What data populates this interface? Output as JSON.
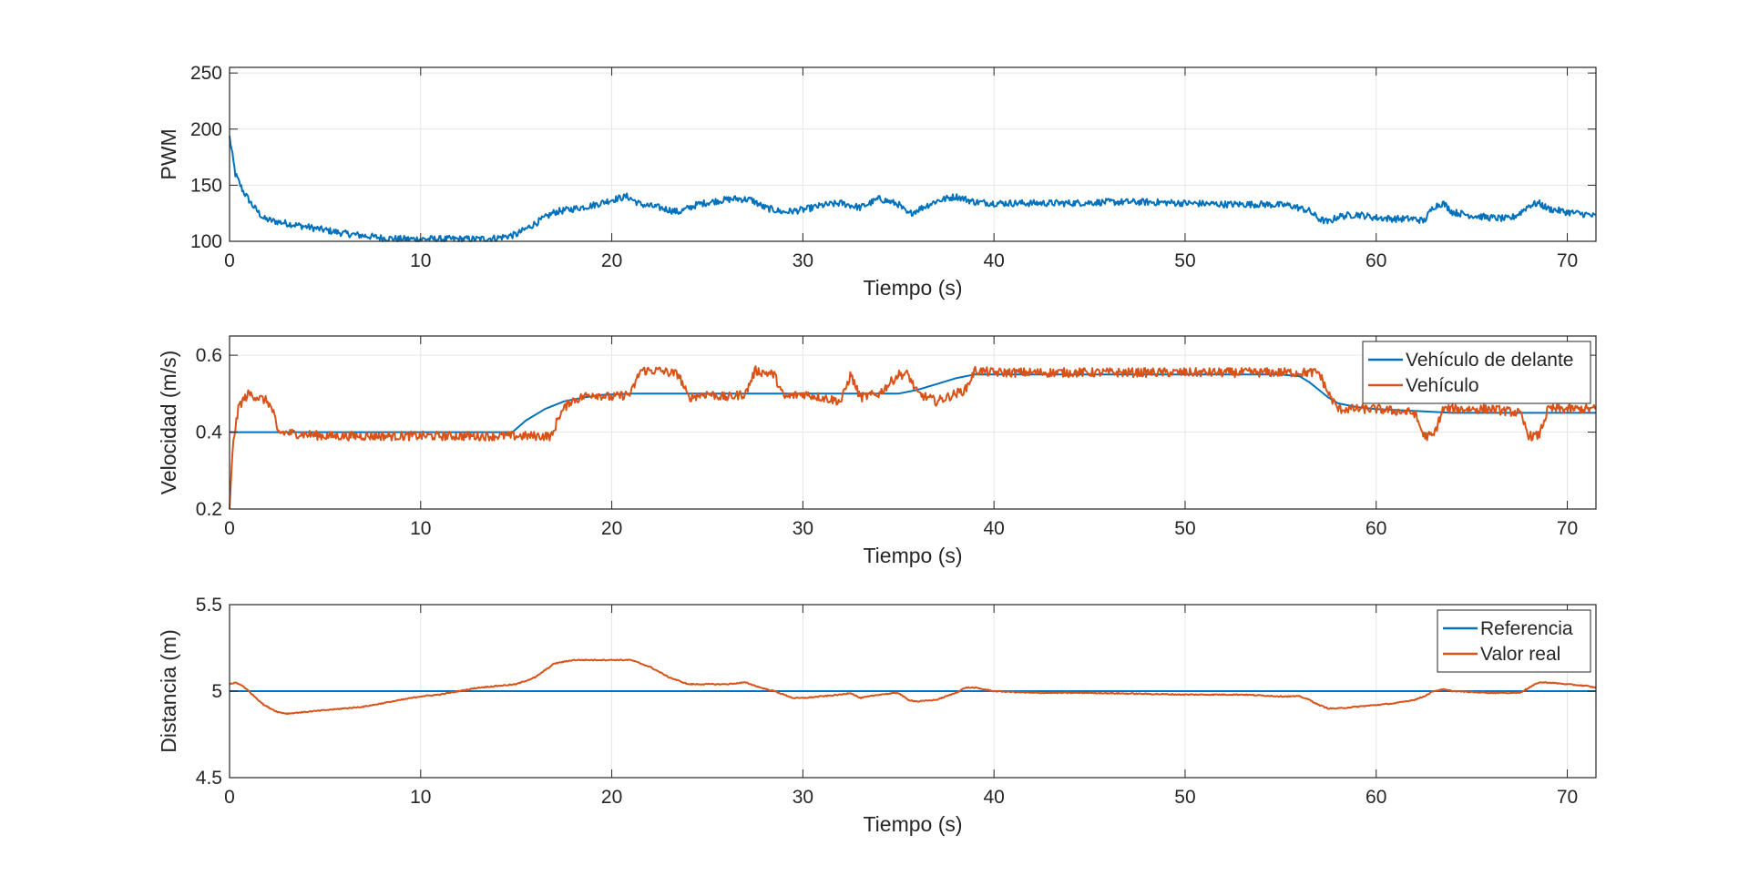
{
  "chart_data": [
    {
      "type": "line",
      "ylabel": "PWM",
      "xlabel": "Tiempo (s)",
      "xlim": [
        0,
        71.5
      ],
      "ylim": [
        100,
        255
      ],
      "xticks": [
        0,
        10,
        20,
        30,
        40,
        50,
        60,
        70
      ],
      "yticks": [
        100,
        150,
        200,
        250
      ],
      "grid": true,
      "legend": null,
      "series": [
        {
          "color": "#0072BD",
          "noise": 3,
          "x": [
            0,
            0.3,
            0.7,
            1.2,
            1.8,
            2.3,
            3,
            4,
            5,
            6,
            7,
            8,
            9,
            10,
            11,
            12,
            13,
            14,
            15,
            16,
            17,
            18,
            19,
            20,
            20.8,
            21.5,
            22.5,
            23.5,
            24.5,
            25.5,
            26.5,
            27.3,
            28,
            29,
            30,
            31,
            32,
            33,
            34,
            35,
            35.5,
            36,
            37,
            38,
            39,
            40,
            42,
            44,
            46,
            48,
            50,
            52,
            54,
            55.5,
            56.5,
            57,
            57.5,
            58,
            59,
            60,
            61,
            62,
            62.5,
            63,
            63.5,
            64,
            65,
            66,
            67,
            67.5,
            68,
            68.5,
            69,
            70,
            71,
            71.5
          ],
          "y": [
            193,
            160,
            145,
            132,
            120,
            118,
            116,
            113,
            110,
            107,
            105,
            103,
            102,
            102,
            102,
            102,
            102,
            103,
            106,
            116,
            126,
            129,
            132,
            137,
            140,
            133,
            130,
            126,
            133,
            136,
            138,
            137,
            130,
            126,
            128,
            132,
            134,
            130,
            138,
            133,
            124,
            128,
            136,
            140,
            135,
            134,
            134,
            134,
            135,
            135,
            134,
            133,
            133,
            132,
            127,
            120,
            117,
            122,
            124,
            121,
            120,
            120,
            118,
            131,
            134,
            126,
            123,
            121,
            120,
            125,
            132,
            134,
            129,
            126,
            124,
            122
          ]
        }
      ]
    },
    {
      "type": "line",
      "ylabel": "Velocidad (m/s)",
      "xlabel": "Tiempo (s)",
      "xlim": [
        0,
        71.5
      ],
      "ylim": [
        0.2,
        0.65
      ],
      "xticks": [
        0,
        10,
        20,
        30,
        40,
        50,
        60,
        70
      ],
      "yticks": [
        0.2,
        0.4,
        0.6
      ],
      "grid": true,
      "legend": "top-right",
      "series": [
        {
          "name": "Vehículo de delante",
          "color": "#0072BD",
          "noise": 0,
          "x": [
            0,
            0.1,
            14.8,
            15.5,
            16.5,
            17.5,
            18.5,
            19.5,
            21,
            23,
            26,
            29,
            32,
            35,
            36,
            37,
            38,
            39,
            40,
            45,
            50,
            55,
            56,
            56.5,
            57,
            57.5,
            58,
            59,
            60,
            62,
            64,
            67,
            70,
            71.5
          ],
          "y": [
            0.4,
            0.4,
            0.4,
            0.43,
            0.46,
            0.48,
            0.49,
            0.497,
            0.5,
            0.5,
            0.5,
            0.5,
            0.5,
            0.5,
            0.51,
            0.525,
            0.54,
            0.55,
            0.55,
            0.55,
            0.55,
            0.55,
            0.545,
            0.53,
            0.51,
            0.49,
            0.475,
            0.465,
            0.46,
            0.455,
            0.45,
            0.45,
            0.45,
            0.45
          ]
        },
        {
          "name": "Vehículo",
          "color": "#D95319",
          "noise": 0.012,
          "x": [
            0,
            0.2,
            0.5,
            1,
            1.5,
            2,
            2.3,
            2.5,
            5,
            10,
            14,
            15,
            16,
            16.9,
            17.2,
            17.8,
            19,
            20,
            21,
            21.5,
            22.5,
            23.5,
            24,
            25,
            26,
            27,
            27.5,
            28.5,
            29,
            30,
            31,
            32,
            32.5,
            33,
            34,
            35,
            35.5,
            36,
            37,
            38,
            38.5,
            39,
            40,
            45,
            50,
            55,
            56.5,
            57,
            57.5,
            58,
            59,
            60,
            61,
            62,
            62.5,
            63,
            63.5,
            64,
            66,
            67.5,
            68,
            68.5,
            69,
            70,
            71,
            71.5
          ],
          "y": [
            0.2,
            0.38,
            0.47,
            0.5,
            0.49,
            0.48,
            0.45,
            0.4,
            0.39,
            0.39,
            0.39,
            0.39,
            0.39,
            0.39,
            0.44,
            0.48,
            0.5,
            0.49,
            0.5,
            0.56,
            0.56,
            0.55,
            0.49,
            0.5,
            0.49,
            0.5,
            0.56,
            0.55,
            0.49,
            0.5,
            0.49,
            0.48,
            0.55,
            0.49,
            0.5,
            0.55,
            0.55,
            0.5,
            0.48,
            0.5,
            0.51,
            0.56,
            0.555,
            0.555,
            0.555,
            0.555,
            0.555,
            0.555,
            0.5,
            0.46,
            0.46,
            0.46,
            0.455,
            0.45,
            0.39,
            0.39,
            0.46,
            0.46,
            0.46,
            0.45,
            0.39,
            0.39,
            0.46,
            0.46,
            0.46,
            0.46
          ]
        }
      ]
    },
    {
      "type": "line",
      "ylabel": "Distancia (m)",
      "xlabel": "Tiempo (s)",
      "xlim": [
        0,
        71.5
      ],
      "ylim": [
        4.5,
        5.5
      ],
      "xticks": [
        0,
        10,
        20,
        30,
        40,
        50,
        60,
        70
      ],
      "yticks": [
        4.5,
        5,
        5.5
      ],
      "grid": true,
      "legend": "top-right",
      "series": [
        {
          "name": "Referencia",
          "color": "#0072BD",
          "noise": 0,
          "x": [
            0,
            71.5
          ],
          "y": [
            5,
            5
          ]
        },
        {
          "name": "Valor real",
          "color": "#D95319",
          "noise": 0.003,
          "x": [
            0,
            0.3,
            0.7,
            1.2,
            1.8,
            2.5,
            3,
            4,
            5,
            6,
            7,
            8,
            9,
            10,
            11,
            12,
            13,
            14,
            15,
            16,
            17,
            18,
            19,
            20,
            21,
            22,
            23,
            24,
            25,
            26,
            27,
            27.8,
            28.5,
            29,
            29.5,
            30,
            31,
            32,
            32.5,
            33,
            34,
            35,
            35.5,
            36,
            37,
            38,
            38.5,
            39,
            40,
            42,
            45,
            50,
            53,
            55,
            56,
            56.5,
            57,
            57.5,
            58,
            59,
            60,
            61,
            62,
            62.5,
            63,
            63.5,
            64,
            66,
            67.5,
            68.5,
            69,
            70,
            71,
            71.5
          ],
          "y": [
            5.04,
            5.05,
            5.03,
            4.98,
            4.92,
            4.88,
            4.87,
            4.88,
            4.89,
            4.9,
            4.91,
            4.93,
            4.95,
            4.97,
            4.98,
            5.0,
            5.02,
            5.03,
            5.04,
            5.08,
            5.16,
            5.18,
            5.18,
            5.18,
            5.18,
            5.14,
            5.08,
            5.04,
            5.04,
            5.04,
            5.05,
            5.02,
            5.0,
            4.98,
            4.96,
            4.96,
            4.97,
            4.98,
            4.99,
            4.96,
            4.98,
            4.99,
            4.95,
            4.94,
            4.95,
            4.99,
            5.02,
            5.02,
            5.0,
            4.99,
            4.99,
            4.98,
            4.98,
            4.97,
            4.97,
            4.95,
            4.92,
            4.9,
            4.9,
            4.91,
            4.92,
            4.93,
            4.95,
            4.97,
            5.0,
            5.01,
            5.0,
            4.99,
            4.99,
            5.05,
            5.05,
            5.04,
            5.03,
            5.02
          ]
        }
      ]
    }
  ]
}
